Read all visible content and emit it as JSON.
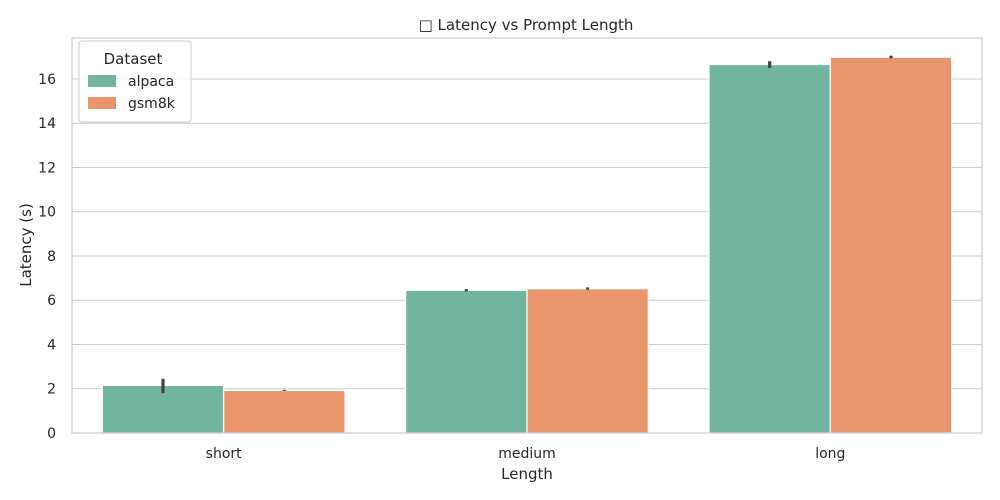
{
  "chart_data": {
    "type": "bar",
    "title": "□ Latency vs Prompt Length",
    "xlabel": "Length",
    "ylabel": "Latency (s)",
    "categories": [
      "short",
      "medium",
      "long"
    ],
    "series": [
      {
        "name": "alpaca",
        "color": "#72b59f",
        "values": [
          2.15,
          6.45,
          16.65
        ],
        "error_low": [
          1.8,
          6.4,
          16.5
        ],
        "error_high": [
          2.45,
          6.5,
          16.8
        ]
      },
      {
        "name": "gsm8k",
        "color": "#e9966f",
        "values": [
          1.92,
          6.52,
          16.98
        ],
        "error_low": [
          1.9,
          6.48,
          16.93
        ],
        "error_high": [
          1.95,
          6.58,
          17.05
        ]
      }
    ],
    "ylim": [
      0,
      17.85
    ],
    "yticks": [
      0,
      2,
      4,
      6,
      8,
      10,
      12,
      14,
      16
    ],
    "grid": true,
    "legend": {
      "title": "Dataset",
      "placement": "top-left"
    }
  }
}
